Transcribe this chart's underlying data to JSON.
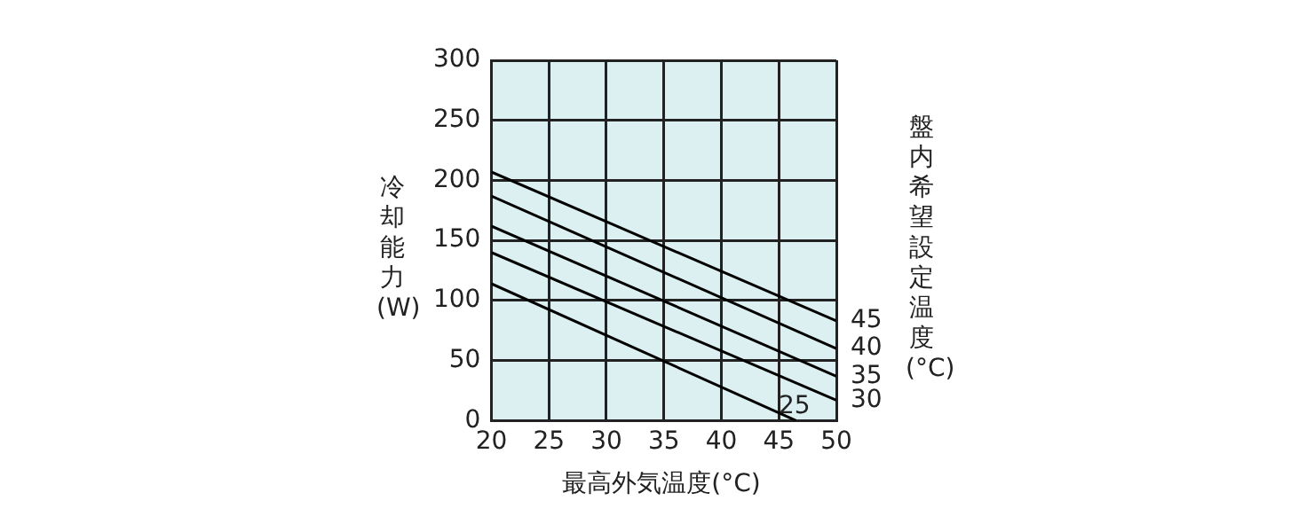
{
  "chart_data": {
    "type": "line",
    "xlabel": "最高外気温度(°C)",
    "ylabel": "冷却能力(W)",
    "legend_title": "盤内希望設定温度(°C)",
    "series": [
      {
        "name": "45",
        "color": "#000000",
        "x": [
          20,
          50
        ],
        "values": [
          207,
          83
        ]
      },
      {
        "name": "40",
        "color": "#000000",
        "x": [
          20,
          50
        ],
        "values": [
          187,
          60
        ]
      },
      {
        "name": "35",
        "color": "#000000",
        "x": [
          20,
          50
        ],
        "values": [
          162,
          37
        ]
      },
      {
        "name": "30",
        "color": "#000000",
        "x": [
          20,
          50
        ],
        "values": [
          140,
          17
        ]
      },
      {
        "name": "25",
        "color": "#000000",
        "x": [
          20,
          46.5
        ],
        "values": [
          114,
          0
        ]
      }
    ],
    "xlim": [
      20,
      50
    ],
    "xticks": [
      20,
      25,
      30,
      35,
      40,
      45,
      50
    ],
    "ylim": [
      0,
      300
    ],
    "yticks": [
      0,
      50,
      100,
      150,
      200,
      250,
      300
    ],
    "grid": true,
    "legend": false,
    "marker": "none",
    "line_style": "solid"
  }
}
